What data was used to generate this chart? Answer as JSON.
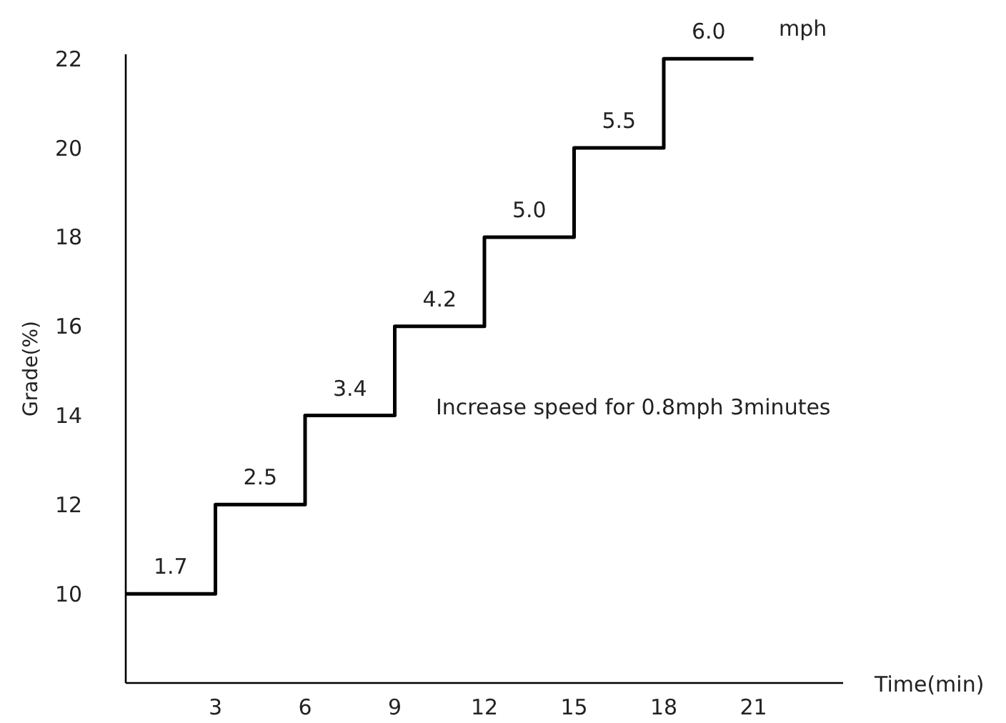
{
  "chart_data": {
    "type": "step",
    "xlabel": "Time(min)",
    "ylabel": "Grade(%)",
    "x": [
      0,
      3,
      6,
      9,
      12,
      15,
      18,
      21
    ],
    "series": [
      {
        "color": "#000000",
        "values": [
          10,
          12,
          14,
          16,
          18,
          20,
          22,
          22
        ]
      }
    ],
    "xlim": [
      0,
      24
    ],
    "ylim": [
      8,
      22.1
    ],
    "xticks": [
      3,
      6,
      9,
      12,
      15,
      18,
      21
    ],
    "yticks": [
      10,
      12,
      14,
      16,
      18,
      20,
      22
    ],
    "annotations": [
      {
        "text": "1.7",
        "x": 1.5,
        "y": 10
      },
      {
        "text": "2.5",
        "x": 4.5,
        "y": 12
      },
      {
        "text": "3.4",
        "x": 7.5,
        "y": 14
      },
      {
        "text": "4.2",
        "x": 10.5,
        "y": 16
      },
      {
        "text": "5.0",
        "x": 13.5,
        "y": 18
      },
      {
        "text": "5.5",
        "x": 16.5,
        "y": 20
      },
      {
        "text": "6.0",
        "x": 19.5,
        "y": 22
      },
      "mph",
      "Increase speed for 0.8mph 3minutes"
    ],
    "grid": false
  }
}
